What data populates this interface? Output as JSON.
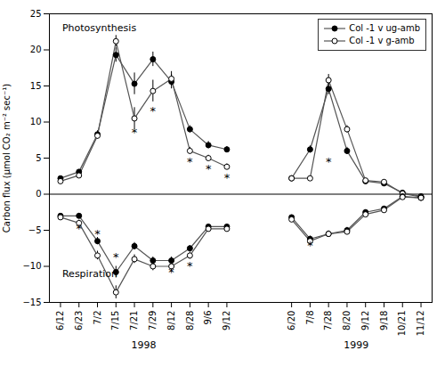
{
  "chart_data": {
    "type": "line",
    "ylabel": "Carbon flux (μmol CO₂ m⁻² sec⁻¹)",
    "ylim": [
      -15,
      25
    ],
    "yticks": [
      -15,
      -10,
      -5,
      0,
      5,
      10,
      15,
      20,
      25
    ],
    "grid": false,
    "legend": "upper right",
    "groups": [
      {
        "label": "1998",
        "categories": [
          "6/12",
          "6/23",
          "7/2",
          "7/15",
          "7/21",
          "7/29",
          "8/12",
          "8/28",
          "9/6",
          "9/12"
        ]
      },
      {
        "label": "1999",
        "categories": [
          "6/20",
          "7/8",
          "7/28",
          "8/20",
          "9/12",
          "9/18",
          "10/21",
          "11/12"
        ]
      }
    ],
    "series": [
      {
        "name": "Col -1 v ug-amb",
        "color": "#555555",
        "marker": "filled",
        "values": [
          [
            2.2,
            3.1,
            8.3,
            19.3,
            15.3,
            18.7,
            15.6,
            9.0,
            6.8,
            6.2
          ],
          [
            2.2,
            6.2,
            14.6,
            6.0,
            1.8,
            1.5,
            0.2,
            -0.3
          ]
        ],
        "errors": [
          [
            0.3,
            0.3,
            0.5,
            1.0,
            1.5,
            1.0,
            1.0,
            0.5,
            0.5,
            0.4
          ],
          [
            0.3,
            0.5,
            0.8,
            0.5,
            0.3,
            0.3,
            0.2,
            0.2
          ]
        ]
      },
      {
        "name": "Col -1 v g-amb",
        "color": "#555555",
        "marker": "open",
        "values": [
          [
            1.8,
            2.6,
            8.1,
            21.2,
            10.5,
            14.3,
            16.0,
            6.0,
            5.0,
            3.8
          ],
          [
            2.2,
            2.2,
            15.8,
            9.0,
            1.9,
            1.7,
            0.1,
            -0.4
          ]
        ],
        "errors": [
          [
            0.3,
            0.3,
            0.5,
            0.8,
            1.5,
            1.5,
            1.0,
            0.5,
            0.4,
            0.4
          ],
          [
            0.3,
            0.3,
            0.8,
            0.5,
            0.3,
            0.3,
            0.2,
            0.2
          ]
        ]
      },
      {
        "name": "Col -1 v ug-amb",
        "color": "#555555",
        "marker": "filled",
        "values": [
          [
            -3.0,
            -3.0,
            -6.5,
            -10.8,
            -7.2,
            -9.2,
            -9.2,
            -7.5,
            -4.5,
            -4.5
          ],
          [
            -3.2,
            -6.2,
            -5.5,
            -5.0,
            -2.5,
            -2.0,
            -0.3,
            -0.5
          ]
        ],
        "errors": [
          [
            0.3,
            0.3,
            0.5,
            0.8,
            0.5,
            0.5,
            0.5,
            0.4,
            0.3,
            0.3
          ],
          [
            0.3,
            0.4,
            0.4,
            0.4,
            0.3,
            0.2,
            0.1,
            0.1
          ]
        ]
      },
      {
        "name": "Col -1 v g-amb",
        "color": "#555555",
        "marker": "open",
        "values": [
          [
            -3.2,
            -4.0,
            -8.5,
            -13.6,
            -9.0,
            -10.0,
            -10.0,
            -8.5,
            -4.8,
            -4.8
          ],
          [
            -3.5,
            -6.5,
            -5.5,
            -5.2,
            -2.8,
            -2.2,
            -0.4,
            -0.5
          ]
        ],
        "errors": [
          [
            0.3,
            0.4,
            0.6,
            0.9,
            0.6,
            0.6,
            0.6,
            0.5,
            0.3,
            0.3
          ],
          [
            0.3,
            0.4,
            0.4,
            0.4,
            0.3,
            0.2,
            0.1,
            0.1
          ]
        ]
      }
    ],
    "rules": [
      {
        "y": 0
      }
    ],
    "annotations": [
      {
        "text": "Photosynthesis",
        "group": "1998",
        "x": "6/12",
        "y": 23.5
      },
      {
        "text": "Respiration",
        "group": "1998",
        "x": "6/12",
        "y": -10.5
      },
      {
        "text": "*",
        "group": "1998",
        "x": "7/21",
        "y": 8.5
      },
      {
        "text": "*",
        "group": "1998",
        "x": "7/29",
        "y": 11.5
      },
      {
        "text": "*",
        "group": "1998",
        "x": "8/28",
        "y": 4.5
      },
      {
        "text": "*",
        "group": "1998",
        "x": "9/6",
        "y": 3.5
      },
      {
        "text": "*",
        "group": "1998",
        "x": "9/12",
        "y": 2.3
      },
      {
        "text": "*",
        "group": "1999",
        "x": "7/28",
        "y": 4.5
      },
      {
        "text": "*",
        "group": "1998",
        "x": "6/23",
        "y": -4.8
      },
      {
        "text": "*",
        "group": "1998",
        "x": "7/2",
        "y": -5.5
      },
      {
        "text": "*",
        "group": "1998",
        "x": "7/15",
        "y": -8.8
      },
      {
        "text": "*",
        "group": "1998",
        "x": "8/12",
        "y": -10.8
      },
      {
        "text": "*",
        "group": "1998",
        "x": "8/28",
        "y": -10.0
      },
      {
        "text": "*",
        "group": "1999",
        "x": "7/8",
        "y": -7.2
      }
    ]
  }
}
